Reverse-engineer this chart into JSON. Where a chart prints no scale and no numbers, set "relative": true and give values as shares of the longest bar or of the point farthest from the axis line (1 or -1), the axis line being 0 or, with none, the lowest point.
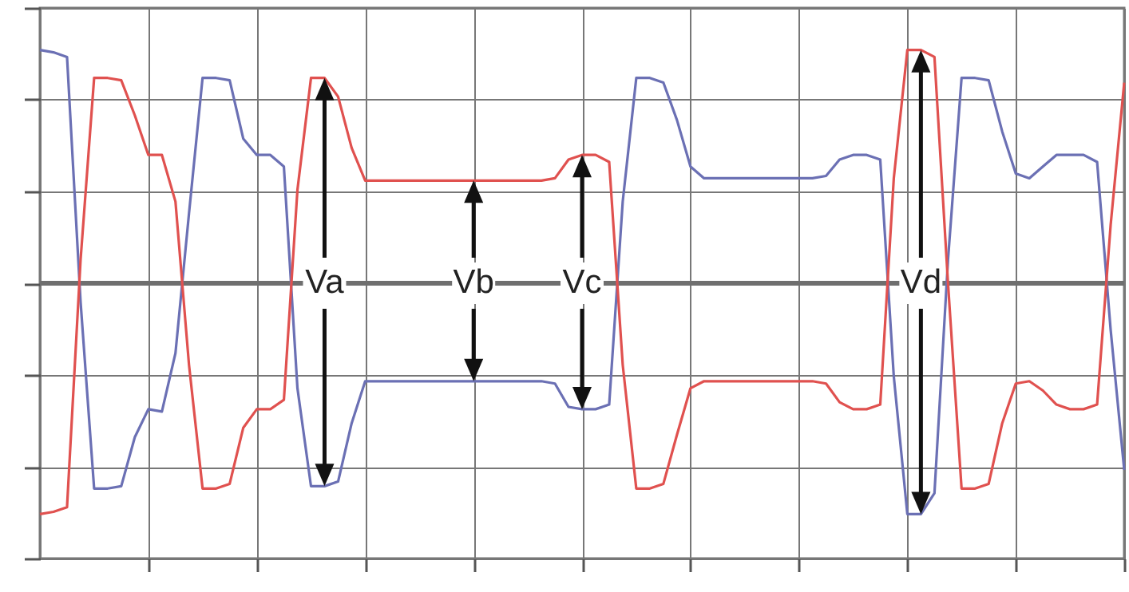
{
  "chart_data": {
    "type": "line",
    "relative": true,
    "grid": true,
    "tick_labels": false,
    "categories": [
      null,
      null,
      null,
      null,
      null,
      null,
      null,
      null,
      null,
      null,
      null,
      null,
      null,
      null,
      null,
      null,
      null,
      null,
      null,
      null,
      null,
      null,
      null,
      null,
      null,
      null,
      null,
      null,
      null,
      null,
      null,
      null,
      null,
      null,
      null,
      null,
      null,
      null,
      null,
      null,
      null,
      null,
      null,
      null,
      null,
      null,
      null,
      null,
      null,
      null,
      null,
      null,
      null,
      null,
      null,
      null,
      null,
      null,
      null,
      null,
      null,
      null,
      null,
      null,
      null,
      null,
      null,
      null,
      null,
      null,
      null,
      null,
      null,
      null,
      null,
      null,
      null,
      null,
      null,
      null,
      null
    ],
    "series": [
      {
        "color": "#6b70b4",
        "values": [
          1.0,
          0.99,
          0.97,
          -0.08,
          -0.88,
          -0.88,
          -0.87,
          -0.66,
          -0.54,
          -0.55,
          -0.3,
          0.3,
          0.88,
          0.88,
          0.87,
          0.62,
          0.55,
          0.55,
          0.5,
          -0.45,
          -0.87,
          -0.87,
          -0.85,
          -0.6,
          -0.42,
          -0.42,
          -0.42,
          -0.42,
          -0.42,
          -0.42,
          -0.42,
          -0.42,
          -0.42,
          -0.42,
          -0.42,
          -0.42,
          -0.42,
          -0.42,
          -0.43,
          -0.53,
          -0.54,
          -0.54,
          -0.52,
          0.35,
          0.88,
          0.88,
          0.86,
          0.7,
          0.5,
          0.45,
          0.45,
          0.45,
          0.45,
          0.45,
          0.45,
          0.45,
          0.45,
          0.45,
          0.46,
          0.53,
          0.55,
          0.55,
          0.53,
          -0.4,
          -0.99,
          -0.99,
          -0.9,
          0.1,
          0.88,
          0.88,
          0.87,
          0.65,
          0.47,
          0.45,
          0.5,
          0.55,
          0.55,
          0.55,
          0.52,
          -0.2,
          -0.8
        ]
      },
      {
        "color": "#e0514f",
        "values": [
          -0.99,
          -0.98,
          -0.96,
          0.1,
          0.88,
          0.88,
          0.87,
          0.72,
          0.55,
          0.55,
          0.35,
          -0.35,
          -0.88,
          -0.88,
          -0.86,
          -0.62,
          -0.54,
          -0.54,
          -0.5,
          0.4,
          0.88,
          0.88,
          0.8,
          0.58,
          0.44,
          0.44,
          0.44,
          0.44,
          0.44,
          0.44,
          0.44,
          0.44,
          0.44,
          0.44,
          0.44,
          0.44,
          0.44,
          0.44,
          0.45,
          0.53,
          0.55,
          0.55,
          0.52,
          -0.35,
          -0.88,
          -0.88,
          -0.86,
          -0.65,
          -0.45,
          -0.42,
          -0.42,
          -0.42,
          -0.42,
          -0.42,
          -0.42,
          -0.42,
          -0.42,
          -0.42,
          -0.43,
          -0.51,
          -0.54,
          -0.54,
          -0.52,
          0.45,
          1.0,
          1.0,
          0.97,
          0.0,
          -0.88,
          -0.88,
          -0.86,
          -0.6,
          -0.43,
          -0.42,
          -0.46,
          -0.52,
          -0.54,
          -0.54,
          -0.52,
          0.25,
          0.86
        ]
      }
    ],
    "annotations": [
      "Va",
      "Vb",
      "Vc",
      "Vd"
    ]
  }
}
